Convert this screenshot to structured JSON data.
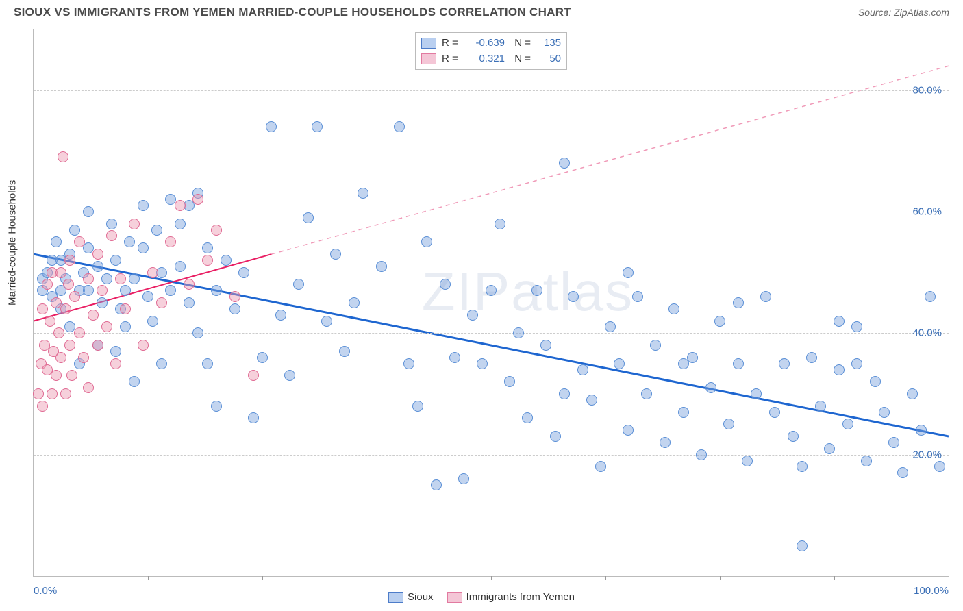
{
  "header": {
    "title": "SIOUX VS IMMIGRANTS FROM YEMEN MARRIED-COUPLE HOUSEHOLDS CORRELATION CHART",
    "source": "Source: ZipAtlas.com"
  },
  "watermark": "ZIPatlas",
  "chart": {
    "type": "scatter",
    "ylabel": "Married-couple Households",
    "xlim": [
      0,
      100
    ],
    "ylim": [
      0,
      90
    ],
    "ytick_values": [
      20,
      40,
      60,
      80
    ],
    "ytick_labels": [
      "20.0%",
      "40.0%",
      "60.0%",
      "80.0%"
    ],
    "xtick_values": [
      0,
      12.5,
      25,
      37.5,
      50,
      62.5,
      75,
      87.5,
      100
    ],
    "xtick_labels": {
      "0": "0.0%",
      "100": "100.0%"
    },
    "grid_color": "#cccccc",
    "background_color": "#ffffff",
    "border_color": "#bbbbbb",
    "point_radius": 8,
    "series": [
      {
        "name": "Sioux",
        "fill": "rgba(120,160,220,0.45)",
        "stroke": "#5a8fd6",
        "swatch_fill": "#b9cff0",
        "swatch_border": "#4d7cc9",
        "trend": {
          "x1": 0,
          "y1": 53,
          "x2": 100,
          "y2": 23,
          "color": "#1e66d0",
          "width": 3,
          "dash": "none"
        },
        "R_label": "-0.639",
        "N_label": "135",
        "points": [
          [
            1,
            49
          ],
          [
            1,
            47
          ],
          [
            1.5,
            50
          ],
          [
            2,
            52
          ],
          [
            2,
            46
          ],
          [
            2.5,
            55
          ],
          [
            3,
            47
          ],
          [
            3,
            52
          ],
          [
            3,
            44
          ],
          [
            3.5,
            49
          ],
          [
            4,
            53
          ],
          [
            4,
            41
          ],
          [
            4.5,
            57
          ],
          [
            5,
            47
          ],
          [
            5,
            35
          ],
          [
            5.5,
            50
          ],
          [
            6,
            54
          ],
          [
            6,
            60
          ],
          [
            6,
            47
          ],
          [
            7,
            38
          ],
          [
            7,
            51
          ],
          [
            7.5,
            45
          ],
          [
            8,
            49
          ],
          [
            8.5,
            58
          ],
          [
            9,
            37
          ],
          [
            9,
            52
          ],
          [
            9.5,
            44
          ],
          [
            10,
            47
          ],
          [
            10,
            41
          ],
          [
            10.5,
            55
          ],
          [
            11,
            32
          ],
          [
            11,
            49
          ],
          [
            12,
            54
          ],
          [
            12,
            61
          ],
          [
            12.5,
            46
          ],
          [
            13,
            42
          ],
          [
            13.5,
            57
          ],
          [
            14,
            50
          ],
          [
            14,
            35
          ],
          [
            15,
            62
          ],
          [
            15,
            47
          ],
          [
            16,
            58
          ],
          [
            16,
            51
          ],
          [
            17,
            45
          ],
          [
            17,
            61
          ],
          [
            18,
            63
          ],
          [
            18,
            40
          ],
          [
            19,
            35
          ],
          [
            19,
            54
          ],
          [
            20,
            28
          ],
          [
            20,
            47
          ],
          [
            21,
            52
          ],
          [
            22,
            44
          ],
          [
            23,
            50
          ],
          [
            24,
            26
          ],
          [
            25,
            36
          ],
          [
            26,
            74
          ],
          [
            27,
            43
          ],
          [
            28,
            33
          ],
          [
            29,
            48
          ],
          [
            30,
            59
          ],
          [
            31,
            74
          ],
          [
            32,
            42
          ],
          [
            33,
            53
          ],
          [
            34,
            37
          ],
          [
            35,
            45
          ],
          [
            36,
            63
          ],
          [
            38,
            51
          ],
          [
            40,
            74
          ],
          [
            41,
            35
          ],
          [
            42,
            28
          ],
          [
            43,
            55
          ],
          [
            44,
            15
          ],
          [
            45,
            48
          ],
          [
            46,
            36
          ],
          [
            47,
            16
          ],
          [
            48,
            43
          ],
          [
            49,
            35
          ],
          [
            50,
            47
          ],
          [
            51,
            58
          ],
          [
            52,
            32
          ],
          [
            53,
            40
          ],
          [
            54,
            26
          ],
          [
            55,
            47
          ],
          [
            56,
            38
          ],
          [
            57,
            23
          ],
          [
            58,
            68
          ],
          [
            59,
            46
          ],
          [
            60,
            34
          ],
          [
            61,
            29
          ],
          [
            62,
            18
          ],
          [
            63,
            41
          ],
          [
            64,
            35
          ],
          [
            65,
            24
          ],
          [
            66,
            46
          ],
          [
            67,
            30
          ],
          [
            68,
            38
          ],
          [
            69,
            22
          ],
          [
            70,
            44
          ],
          [
            71,
            27
          ],
          [
            72,
            36
          ],
          [
            73,
            20
          ],
          [
            74,
            31
          ],
          [
            75,
            42
          ],
          [
            76,
            25
          ],
          [
            77,
            35
          ],
          [
            78,
            19
          ],
          [
            79,
            30
          ],
          [
            80,
            46
          ],
          [
            81,
            27
          ],
          [
            82,
            35
          ],
          [
            83,
            23
          ],
          [
            84,
            18
          ],
          [
            85,
            36
          ],
          [
            86,
            28
          ],
          [
            87,
            21
          ],
          [
            88,
            34
          ],
          [
            89,
            25
          ],
          [
            90,
            41
          ],
          [
            91,
            19
          ],
          [
            92,
            32
          ],
          [
            93,
            27
          ],
          [
            94,
            22
          ],
          [
            95,
            17
          ],
          [
            96,
            30
          ],
          [
            97,
            24
          ],
          [
            98,
            46
          ],
          [
            99,
            18
          ],
          [
            84,
            5
          ],
          [
            90,
            35
          ],
          [
            88,
            42
          ],
          [
            77,
            45
          ],
          [
            65,
            50
          ],
          [
            71,
            35
          ],
          [
            58,
            30
          ]
        ]
      },
      {
        "name": "Immigrants from Yemen",
        "fill": "rgba(235,150,175,0.45)",
        "stroke": "#e06a93",
        "swatch_fill": "#f4c6d6",
        "swatch_border": "#e27aa0",
        "trend_solid": {
          "x1": 0,
          "y1": 42,
          "x2": 26,
          "y2": 53,
          "color": "#e91e63",
          "width": 2
        },
        "trend_dash": {
          "x1": 26,
          "y1": 53,
          "x2": 100,
          "y2": 84,
          "color": "#f09ab8",
          "width": 1.5
        },
        "R_label": "0.321",
        "N_label": "50",
        "points": [
          [
            0.5,
            30
          ],
          [
            0.8,
            35
          ],
          [
            1,
            28
          ],
          [
            1,
            44
          ],
          [
            1.2,
            38
          ],
          [
            1.5,
            48
          ],
          [
            1.5,
            34
          ],
          [
            1.8,
            42
          ],
          [
            2,
            30
          ],
          [
            2,
            50
          ],
          [
            2.2,
            37
          ],
          [
            2.5,
            45
          ],
          [
            2.5,
            33
          ],
          [
            2.8,
            40
          ],
          [
            3,
            50
          ],
          [
            3,
            36
          ],
          [
            3.2,
            69
          ],
          [
            3.5,
            44
          ],
          [
            3.5,
            30
          ],
          [
            3.8,
            48
          ],
          [
            4,
            38
          ],
          [
            4,
            52
          ],
          [
            4.2,
            33
          ],
          [
            4.5,
            46
          ],
          [
            5,
            40
          ],
          [
            5,
            55
          ],
          [
            5.5,
            36
          ],
          [
            6,
            49
          ],
          [
            6,
            31
          ],
          [
            6.5,
            43
          ],
          [
            7,
            53
          ],
          [
            7,
            38
          ],
          [
            7.5,
            47
          ],
          [
            8,
            41
          ],
          [
            8.5,
            56
          ],
          [
            9,
            35
          ],
          [
            9.5,
            49
          ],
          [
            10,
            44
          ],
          [
            11,
            58
          ],
          [
            12,
            38
          ],
          [
            13,
            50
          ],
          [
            14,
            45
          ],
          [
            15,
            55
          ],
          [
            16,
            61
          ],
          [
            17,
            48
          ],
          [
            18,
            62
          ],
          [
            19,
            52
          ],
          [
            20,
            57
          ],
          [
            22,
            46
          ],
          [
            24,
            33
          ]
        ]
      }
    ],
    "legend": {
      "items": [
        "Sioux",
        "Immigrants from Yemen"
      ]
    },
    "stats_box": {
      "rows": [
        {
          "series_index": 0,
          "R": "-0.639",
          "N": "135"
        },
        {
          "series_index": 1,
          "R": "0.321",
          "N": "50"
        }
      ]
    }
  }
}
